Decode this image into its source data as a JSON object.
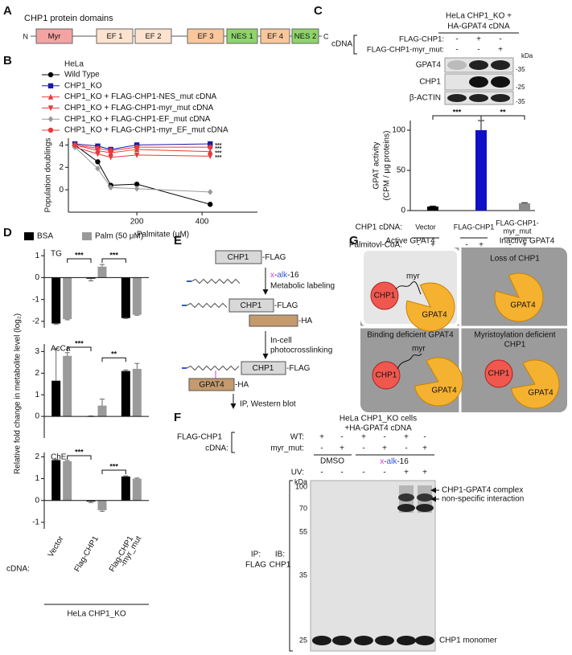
{
  "panel_labels": [
    "A",
    "B",
    "C",
    "D",
    "E",
    "F",
    "G"
  ],
  "panel_a": {
    "title": "CHP1 protein domains",
    "n_term": "N",
    "c_term": "C",
    "domains": [
      {
        "name": "Myr",
        "color": "#f4a3a3"
      },
      {
        "name": "EF 1",
        "color": "#fbe3cf"
      },
      {
        "name": "EF 2",
        "color": "#fbe3cf"
      },
      {
        "name": "EF 3",
        "color": "#f9c79b"
      },
      {
        "name": "NES 1",
        "color": "#8fd46b"
      },
      {
        "name": "EF 4",
        "color": "#f9c79b"
      },
      {
        "name": "NES 2",
        "color": "#8fd46b"
      }
    ]
  },
  "chart_data": [
    {
      "type": "line",
      "legend_title": "HeLa",
      "xlabel": "Palmitate (μM)",
      "ylabel": "Population doublings",
      "x": [
        10,
        80,
        120,
        200,
        425
      ],
      "xlim": [
        -10,
        570
      ],
      "xticks": [
        200,
        400
      ],
      "ylim": [
        -2,
        4.6
      ],
      "yticks": [
        0,
        2,
        4
      ],
      "series": [
        {
          "name": "Wild Type",
          "color": "#000000",
          "marker": "circle",
          "values": [
            4.0,
            2.5,
            0.4,
            0.5,
            -1.3
          ]
        },
        {
          "name": "CHP1_KO",
          "color": "#1a1aaa",
          "marker": "square",
          "values": [
            4.1,
            3.9,
            3.6,
            4.0,
            4.1
          ],
          "annotation": "***"
        },
        {
          "name": "CHP1_KO + FLAG-CHP1-NES_mut cDNA",
          "color": "#e8393a",
          "marker": "triangle-up",
          "values": [
            4.0,
            3.5,
            3.3,
            3.6,
            3.4
          ],
          "annotation": "***"
        },
        {
          "name": "CHP1_KO + FLAG-CHP1-myr_mut cDNA",
          "color": "#e8393a",
          "marker": "triangle-down",
          "values": [
            3.8,
            3.2,
            2.9,
            3.1,
            3.0
          ],
          "annotation": "***"
        },
        {
          "name": "CHP1_KO + FLAG-CHP1-EF_mut cDNA",
          "color": "#999999",
          "marker": "diamond",
          "values": [
            3.8,
            1.9,
            0.2,
            0.1,
            -0.2
          ]
        },
        {
          "name": "CHP1_KO + FLAG-CHP1-myr_EF_mut cDNA",
          "color": "#e8393a",
          "marker": "circle",
          "values": [
            4.0,
            3.7,
            3.5,
            3.8,
            3.8
          ],
          "annotation": "***"
        }
      ]
    },
    {
      "type": "bar",
      "ylabel": [
        "GPAT activity",
        "(CPM / µg proteins)"
      ],
      "ylim": [
        0,
        112
      ],
      "yticks": [
        0,
        50,
        100
      ],
      "categories": [
        "-",
        "+",
        "-",
        "+",
        "-",
        "+"
      ],
      "values": [
        0,
        5,
        0,
        100,
        0,
        9
      ],
      "errors": [
        0,
        0.6,
        0,
        12,
        0,
        0.8
      ],
      "colors": [
        "#000000",
        "#000000",
        "#1010c8",
        "#1010c8",
        "#8c8c8c",
        "#8c8c8c"
      ],
      "annotations": [
        "***",
        "**"
      ],
      "group_label": "CHP1 cDNA:",
      "groups": [
        [
          "Vector"
        ],
        [
          "FLAG-CHP1"
        ],
        [
          "FLAG-CHP1-",
          "myr_mut"
        ]
      ],
      "category_label": "Palmitoyl-CoA:",
      "footer": "HeLa CHP1_KO + HA-GPAT4 cDNA"
    },
    {
      "type": "grouped-bar",
      "ylabel": "Relative fold change in metabolite level (log₂)",
      "series": [
        {
          "name": "BSA",
          "color": "#000000"
        },
        {
          "name": "Palm (50 μM)",
          "color": "#9a9a9a"
        }
      ],
      "category_label": "cDNA:",
      "categories": [
        [
          "Vector"
        ],
        [
          "Flag-CHP1"
        ],
        [
          "Flag-CHP1",
          "-myr_mut"
        ]
      ],
      "footer": "HeLa CHP1_KO",
      "subplots": [
        {
          "title": "TG",
          "ylim": [
            -2.3,
            1.3
          ],
          "yticks": [
            -2,
            -1,
            0,
            1
          ],
          "values": [
            [
              -2.1,
              -0.05,
              -1.85
            ],
            [
              -1.9,
              0.5,
              -1.7
            ]
          ],
          "errors": [
            [
              0.03,
              0.1,
              0.02
            ],
            [
              0.03,
              0.1,
              0.02
            ]
          ],
          "annotations": [
            "***",
            "***"
          ]
        },
        {
          "title": "AcCa",
          "ylim": [
            -1,
            3.35
          ],
          "yticks": [
            0,
            1,
            2,
            3
          ],
          "values": [
            [
              1.65,
              0,
              2.1
            ],
            [
              2.8,
              0.5,
              2.2
            ]
          ],
          "errors": [
            [
              1.5,
              0.02,
              0.05
            ],
            [
              0.15,
              0.3,
              0.25
            ]
          ],
          "annotations": [
            "***",
            "**"
          ]
        },
        {
          "title": "ChE",
          "ylim": [
            -1.3,
            2.2
          ],
          "yticks": [
            -1,
            0,
            1,
            2
          ],
          "values": [
            [
              1.85,
              -0.05,
              1.1
            ],
            [
              1.8,
              -0.45,
              1.0
            ]
          ],
          "errors": [
            [
              0.03,
              0.05,
              0.03
            ],
            [
              0.03,
              0.05,
              0.03
            ]
          ],
          "annotations": [
            "***",
            "***"
          ]
        }
      ]
    }
  ],
  "panel_c_blot": {
    "header": [
      "HeLa CHP1_KO +",
      "HA-GPAT4 cDNA"
    ],
    "cdna_label": "cDNA",
    "rows": [
      {
        "label": "FLAG-CHP1:",
        "signs": [
          "-",
          "+",
          "-"
        ]
      },
      {
        "label": "FLAG-CHP1-myr_mut:",
        "signs": [
          "-",
          "-",
          "+"
        ]
      }
    ],
    "kda_label": "kDa",
    "blots": [
      {
        "name": "GPAT4",
        "marker": "-35"
      },
      {
        "name": "CHP1",
        "marker": "-25"
      },
      {
        "name": "β-ACTIN",
        "marker": "-35"
      }
    ]
  },
  "panel_e": {
    "row1": {
      "chp1": "CHP1",
      "flag": "-FLAG"
    },
    "probe": [
      "x",
      "-",
      "alk",
      "-16"
    ],
    "step1": "Metabolic labeling",
    "row2": {
      "chp1": "CHP1",
      "flag": "-FLAG",
      "ha": "-HA"
    },
    "step2": [
      "In-cell",
      "photocrosslinking"
    ],
    "row3": {
      "chp1": "CHP1",
      "flag": "-FLAG",
      "gpat4": "GPAT4",
      "ha": "-HA"
    },
    "step3": "IP, Western blot"
  },
  "panel_f": {
    "header": [
      "HeLa CHP1_KO cells",
      "+HA-GPAT4 cDNA"
    ],
    "construct": "FLAG-CHP1",
    "cdna": "cDNA:",
    "rows": [
      {
        "label": "WT:",
        "signs": [
          "+",
          "-",
          "+",
          "-",
          "+",
          "-"
        ]
      },
      {
        "label": "myr_mut:",
        "signs": [
          "-",
          "+",
          "-",
          "+",
          "-",
          "+"
        ]
      }
    ],
    "treatment": "DMSO",
    "probe": [
      "x",
      "-",
      "alk",
      "-16"
    ],
    "uv": {
      "label": "UV:",
      "signs": [
        "-",
        "-",
        "-",
        "-",
        "+",
        "+"
      ]
    },
    "kda": "kDa",
    "markers": [
      100,
      70,
      55,
      35,
      25
    ],
    "ip": [
      "IP:",
      "FLAG"
    ],
    "ib": [
      "IB:",
      "CHP1"
    ],
    "bands": [
      "CHP1-GPAT4 complex",
      "non-specific interaction",
      "CHP1 monomer"
    ]
  },
  "panel_g": {
    "titles": [
      "Active GPAT4",
      "Inactive GPAT4"
    ],
    "cells": [
      {
        "myr": "myr",
        "chp1": "CHP1",
        "gpat4": "GPAT4"
      },
      {
        "caption": [
          "Loss of CHP1"
        ],
        "gpat4": "GPAT4"
      },
      {
        "caption": [
          "Binding deficient GPAT4"
        ],
        "myr": "myr",
        "chp1": "CHP1",
        "gpat4": "GPAT4"
      },
      {
        "caption": [
          "Myristoylation deficient",
          "CHP1"
        ],
        "chp1": "CHP1",
        "gpat4": "GPAT4"
      }
    ]
  }
}
